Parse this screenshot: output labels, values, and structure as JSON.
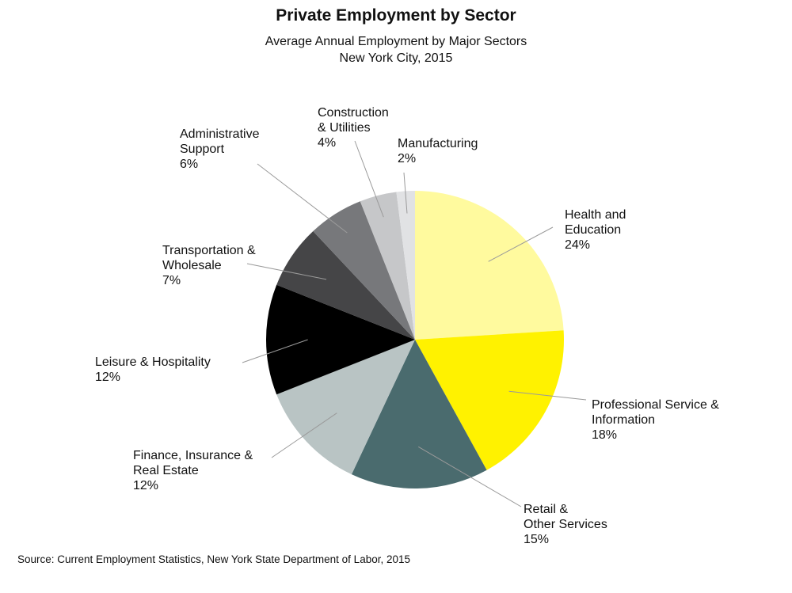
{
  "chart_data": {
    "type": "pie",
    "title": "Private Employment by Sector",
    "subtitle": [
      "Average Annual Employment by Major Sectors",
      "New York City, 2015"
    ],
    "slices": [
      {
        "label": [
          "Health and",
          "Education"
        ],
        "value": 24,
        "value_label": "24%",
        "color": "#fffa9e"
      },
      {
        "label": [
          "Professional Service &",
          "Information"
        ],
        "value": 18,
        "value_label": "18%",
        "color": "#fff200"
      },
      {
        "label": [
          "Retail &",
          "Other Services"
        ],
        "value": 15,
        "value_label": "15%",
        "color": "#4a6b6e"
      },
      {
        "label": [
          "Finance, Insurance &",
          "Real Estate"
        ],
        "value": 12,
        "value_label": "12%",
        "color": "#b9c4c4"
      },
      {
        "label": [
          "Leisure & Hospitality"
        ],
        "value": 12,
        "value_label": "12%",
        "color": "#000000"
      },
      {
        "label": [
          "Transportation &",
          "Wholesale"
        ],
        "value": 7,
        "value_label": "7%",
        "color": "#454547"
      },
      {
        "label": [
          "Administrative",
          "Support"
        ],
        "value": 6,
        "value_label": "6%",
        "color": "#77787b"
      },
      {
        "label": [
          "Construction",
          "& Utilities"
        ],
        "value": 4,
        "value_label": "4%",
        "color": "#c6c7c9"
      },
      {
        "label": [
          "Manufacturing"
        ],
        "value": 2,
        "value_label": "2%",
        "color": "#e1e2e4"
      }
    ],
    "source": "Source: Current Employment Statistics, New York State Department of Labor, 2015"
  }
}
